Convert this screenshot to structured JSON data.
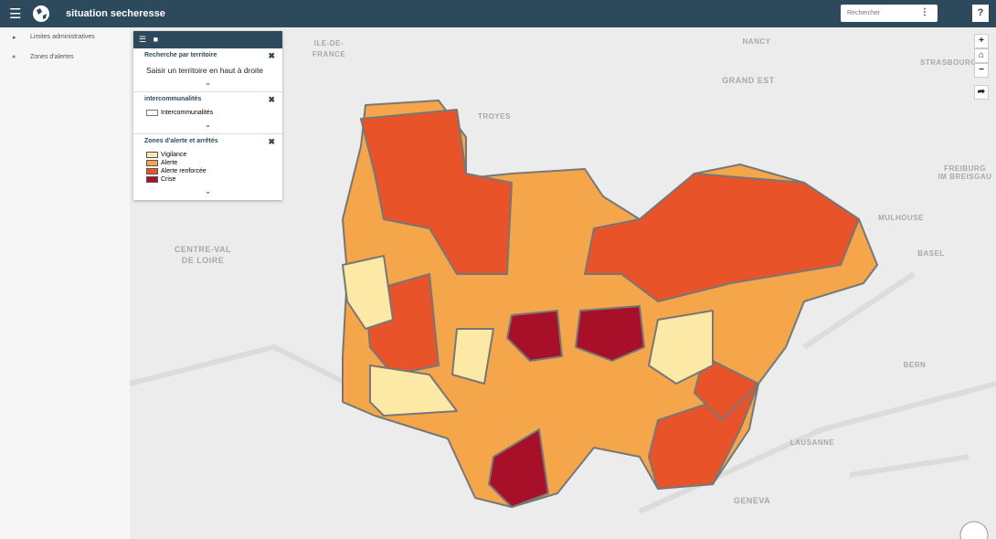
{
  "header": {
    "title": "situation secheresse",
    "search_placeholder": "Rechercher",
    "help": "?"
  },
  "sidebar": {
    "items": [
      "Limites administratives",
      "Zones d'alertes"
    ]
  },
  "panel": {
    "sections": [
      {
        "title": "Recherche par territoire",
        "text": "Saisir un territoire en haut à droite"
      },
      {
        "title": "intercommunalités",
        "legend": [
          {
            "label": "Intercommunalités"
          }
        ]
      },
      {
        "title": "Zones d'alerte et arrêtés",
        "legend": [
          {
            "label": "Vigilance",
            "color": "#fde9a6"
          },
          {
            "label": "Alerte",
            "color": "#f5a64a"
          },
          {
            "label": "Alerte renforcée",
            "color": "#e8532a"
          },
          {
            "label": "Crise",
            "color": "#a8102a"
          }
        ]
      }
    ]
  },
  "map": {
    "labels": [
      [
        "ILE-DE-",
        "FRANCE"
      ],
      [
        "NANCY"
      ],
      [
        "TROYES"
      ],
      [
        "GRAND EST"
      ],
      [
        "STRASBOURG"
      ],
      [
        "FREIBURG",
        "IM BREISGAU"
      ],
      [
        "MULHOUSE"
      ],
      [
        "BASEL"
      ],
      [
        "CENTRE-VAL",
        "DE LOIRE"
      ],
      [
        "BERN"
      ],
      [
        "LAUSANNE"
      ],
      [
        "GENEVA"
      ]
    ]
  }
}
